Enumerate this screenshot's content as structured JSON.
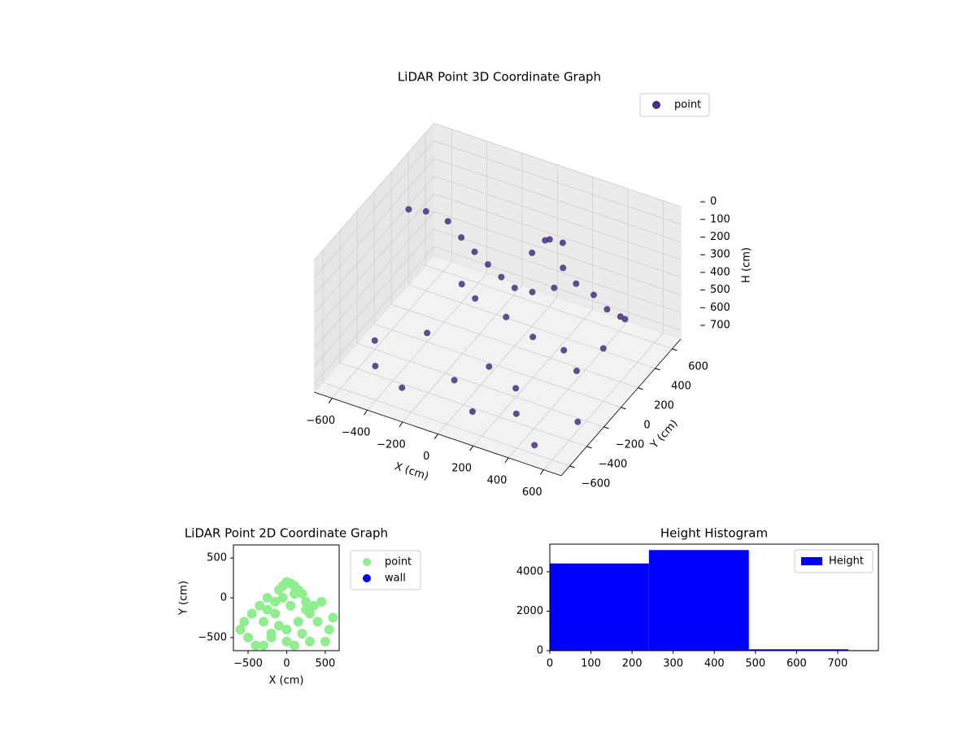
{
  "chart_data": [
    {
      "type": "scatter3d",
      "title": "LiDAR Point 3D Coordinate Graph",
      "xlabel": "X (cm)",
      "ylabel": "Y (cm)",
      "zlabel": "H (cm)",
      "xlim": [
        -700,
        700
      ],
      "ylim": [
        -700,
        700
      ],
      "zlim": [
        0,
        750
      ],
      "z_inverted": true,
      "grid": true,
      "legend": "upper right",
      "xticks": [
        {
          "value": -600,
          "label": "−600"
        },
        {
          "value": -400,
          "label": "−400"
        },
        {
          "value": -200,
          "label": "−200"
        },
        0,
        200,
        400,
        600
      ],
      "yticks": [
        {
          "value": -600,
          "label": "−600"
        },
        {
          "value": -400,
          "label": "−400"
        },
        {
          "value": -200,
          "label": "−200"
        },
        0,
        200,
        400,
        600
      ],
      "zticks": [
        0,
        100,
        200,
        300,
        400,
        500,
        600,
        700
      ],
      "series": [
        {
          "name": "point",
          "color": "#46307e",
          "x": [
            -650,
            -600,
            -500,
            -400,
            -300,
            -200,
            -100,
            0,
            100,
            200,
            300,
            400,
            500,
            600,
            650,
            150,
            200,
            100,
            250,
            50,
            -300,
            -200,
            0,
            200,
            400,
            600,
            -600,
            -500,
            -300,
            -100,
            100,
            300,
            500,
            600,
            -400,
            0,
            200,
            400
          ],
          "y": [
            300,
            400,
            450,
            400,
            350,
            300,
            250,
            200,
            200,
            250,
            300,
            300,
            250,
            200,
            150,
            300,
            350,
            350,
            250,
            300,
            200,
            150,
            100,
            0,
            -50,
            0,
            -200,
            -400,
            -500,
            -300,
            -500,
            -400,
            -600,
            -300,
            0,
            -100,
            -200,
            100
          ],
          "z": [
            250,
            300,
            350,
            380,
            400,
            410,
            420,
            420,
            410,
            380,
            350,
            380,
            400,
            380,
            350,
            150,
            180,
            200,
            250,
            260,
            500,
            520,
            530,
            520,
            500,
            450,
            700,
            700,
            700,
            700,
            700,
            700,
            700,
            700,
            700,
            700,
            700,
            700
          ]
        }
      ]
    },
    {
      "type": "scatter",
      "title": "LiDAR Point 2D Coordinate Graph",
      "xlabel": "X (cm)",
      "ylabel": "Y (cm)",
      "xlim": [
        -690,
        680
      ],
      "ylim": [
        -665,
        665
      ],
      "legend": "outside right",
      "xticks": [
        {
          "value": -500,
          "label": "−500"
        },
        0,
        500
      ],
      "yticks": [
        {
          "value": -500,
          "label": "−500"
        },
        0,
        500
      ],
      "series": [
        {
          "name": "point",
          "color": "#90ee90",
          "x": [
            -600,
            -550,
            -500,
            -450,
            -400,
            -350,
            -300,
            -250,
            -200,
            -150,
            -100,
            -50,
            0,
            50,
            100,
            150,
            200,
            250,
            300,
            350,
            400,
            450,
            500,
            550,
            600,
            -300,
            -200,
            -100,
            0,
            100,
            200,
            300,
            -50,
            50,
            150,
            -150,
            0,
            100,
            -250,
            250
          ],
          "y": [
            -400,
            -300,
            -500,
            -200,
            -600,
            -100,
            -300,
            -150,
            -500,
            -50,
            100,
            150,
            200,
            180,
            150,
            100,
            50,
            -50,
            -200,
            -100,
            -300,
            -50,
            -550,
            -400,
            -250,
            -600,
            -450,
            -350,
            -550,
            -600,
            -450,
            -550,
            0,
            -100,
            -300,
            -200,
            -400,
            50,
            0,
            -150
          ]
        },
        {
          "name": "wall",
          "color": "#0000ff",
          "x": [],
          "y": []
        }
      ]
    },
    {
      "type": "histogram",
      "title": "Height Histogram",
      "bins": [
        0,
        241,
        484,
        726,
        968
      ],
      "xlim": [
        0,
        799
      ],
      "ylim": [
        0,
        5400
      ],
      "xticks": [
        0,
        100,
        200,
        300,
        400,
        500,
        600,
        700
      ],
      "yticks": [
        0,
        2000,
        4000
      ],
      "legend": "upper right",
      "series": [
        {
          "name": "Height",
          "color": "#0000ff",
          "values": [
            4420,
            5100,
            70,
            25
          ]
        }
      ]
    }
  ]
}
